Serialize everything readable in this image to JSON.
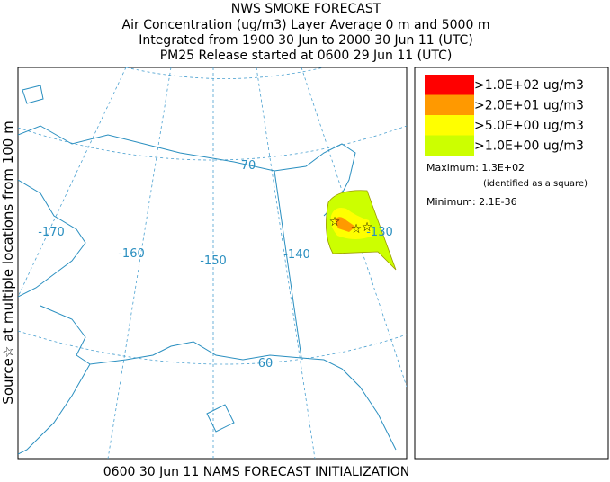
{
  "header": {
    "title": "NWS SMOKE FORECAST",
    "lines": [
      "Air Concentration (ug/m3) Layer Average    0 m and  5000 m",
      "Integrated from 1900 30 Jun to 2000 30 Jun 11 (UTC)",
      "PM25 Release started at 0600 29 Jun 11 (UTC)"
    ]
  },
  "side_label": "Source☆ at multiple locations   from   100 m",
  "footer": "0600 30 Jun 11 NAMS FORECAST INITIALIZATION",
  "legend": {
    "entries": [
      {
        "label": ">1.0E+02 ug/m3",
        "color": "#ff0000"
      },
      {
        "label": ">2.0E+01 ug/m3",
        "color": "#ff9900"
      },
      {
        "label": ">5.0E+00 ug/m3",
        "color": "#ffff00"
      },
      {
        "label": ">1.0E+00 ug/m3",
        "color": "#ccff00"
      }
    ],
    "maximum": "Maximum: 1.3E+02",
    "maximum_note": "(identified as a square)",
    "minimum": "Minimum: 2.1E-36"
  },
  "map": {
    "labels": [
      "-170",
      "-160",
      "-150",
      "-140",
      "-130",
      "70",
      "60"
    ]
  }
}
